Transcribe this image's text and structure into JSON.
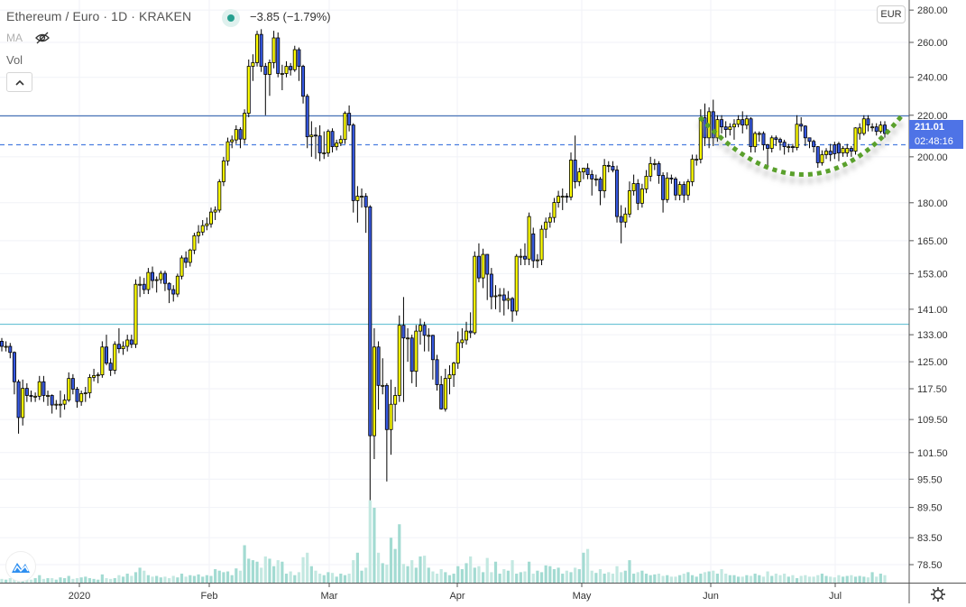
{
  "header": {
    "symbol_title": "Ethereum / Euro · 1D · KRAKEN",
    "change": "−3.85 (−1.79%)",
    "market_status_color": "#26a08f",
    "ma_label": "MA",
    "vol_label": "Vol",
    "collapse_icon": "chevron-up-icon",
    "hide_icon": "eye-slash-icon"
  },
  "axis": {
    "currency": "EUR",
    "current_price": "211.01",
    "countdown": "02:48:16",
    "settings_icon": "gear-icon"
  },
  "chart_data": {
    "type": "candlestick",
    "scale": "log",
    "grid": true,
    "colors": {
      "up": "#ffff00",
      "down": "#3658e0",
      "wick": "#000000",
      "volume": "#a9ddd4",
      "arc": "#5aa02c"
    },
    "y_ticks": [
      "280.00",
      "260.00",
      "240.00",
      "220.00",
      "200.00",
      "180.00",
      "165.00",
      "153.00",
      "141.00",
      "133.00",
      "125.00",
      "117.50",
      "109.50",
      "101.50",
      "95.50",
      "89.50",
      "83.50",
      "78.50"
    ],
    "x_ticks": [
      "2020",
      "Feb",
      "Mar",
      "Apr",
      "May",
      "Jun",
      "Jul"
    ],
    "horizontal_lines": [
      {
        "price": 220,
        "style": "solid",
        "color": "#4a74b8"
      },
      {
        "price": 206,
        "style": "dashed",
        "color": "#4a7ee0"
      },
      {
        "price": 136.4,
        "style": "solid",
        "color": "#72c6d8"
      }
    ],
    "annotation": {
      "type": "rounded-bottom arc",
      "style": "dotted",
      "color": "#5aa02c"
    },
    "candles": [
      [
        131,
        132,
        128,
        129.5
      ],
      [
        129.5,
        131,
        128,
        129.5
      ],
      [
        129.5,
        130.5,
        126,
        127.7
      ],
      [
        127.7,
        128,
        116,
        119.4
      ],
      [
        119.4,
        120,
        106,
        110
      ],
      [
        110,
        120,
        108,
        117.6
      ],
      [
        117.6,
        119,
        114,
        115.7
      ],
      [
        115.7,
        117,
        114,
        115.5
      ],
      [
        115.5,
        116.5,
        114,
        115.5
      ],
      [
        115.5,
        121,
        114.5,
        119.4
      ],
      [
        119.4,
        121,
        114,
        115.7
      ],
      [
        115.7,
        117,
        113,
        115.7
      ],
      [
        115.7,
        116,
        111,
        113.2
      ],
      [
        113.2,
        114.5,
        112,
        113.4
      ],
      [
        113.4,
        117,
        110,
        113.4
      ],
      [
        113.4,
        116,
        112,
        114.5
      ],
      [
        114.5,
        122,
        114,
        120.3
      ],
      [
        120.3,
        121.5,
        116,
        117.4
      ],
      [
        117.4,
        118,
        112.5,
        114.1
      ],
      [
        114.1,
        117,
        113,
        116.2
      ],
      [
        116.2,
        118,
        114,
        116.4
      ],
      [
        116.4,
        121.5,
        115,
        120.6
      ],
      [
        120.6,
        123,
        119.5,
        121.1
      ],
      [
        121.1,
        122,
        119,
        121.3
      ],
      [
        121.3,
        131,
        120.5,
        129.3
      ],
      [
        129.3,
        133,
        124,
        124.6
      ],
      [
        124.6,
        126,
        121,
        122.6
      ],
      [
        122.6,
        131,
        121.5,
        130.1
      ],
      [
        130.1,
        135,
        127.5,
        128.8
      ],
      [
        128.8,
        131,
        127,
        129.5
      ],
      [
        129.5,
        133,
        128,
        131.4
      ],
      [
        131.4,
        133,
        129,
        130.1
      ],
      [
        130.1,
        151,
        129,
        149.3
      ],
      [
        149.3,
        152,
        145,
        149.3
      ],
      [
        149.3,
        151.5,
        146,
        147.5
      ],
      [
        147.5,
        155,
        146,
        153.4
      ],
      [
        153.4,
        155.5,
        148,
        150.6
      ],
      [
        150.6,
        152,
        146.5,
        150.9
      ],
      [
        150.9,
        154,
        149.5,
        153.1
      ],
      [
        153.1,
        154,
        147,
        149.6
      ],
      [
        149.6,
        150,
        143,
        147.5
      ],
      [
        147.5,
        149,
        143.5,
        146
      ],
      [
        146,
        153,
        145,
        152.1
      ],
      [
        152.1,
        159.5,
        151,
        158.6
      ],
      [
        158.6,
        161,
        155,
        157
      ],
      [
        157,
        162,
        155.5,
        161.5
      ],
      [
        161.5,
        168,
        160,
        166.9
      ],
      [
        166.9,
        171,
        164,
        168.3
      ],
      [
        168.3,
        173,
        167,
        170.8
      ],
      [
        170.8,
        174,
        169,
        171.5
      ],
      [
        171.5,
        178,
        170,
        176.2
      ],
      [
        176.2,
        178.5,
        173,
        177
      ],
      [
        177,
        190,
        176,
        188.9
      ],
      [
        188.9,
        200,
        187,
        198.1
      ],
      [
        198.1,
        209,
        196,
        207
      ],
      [
        207,
        210,
        204,
        207.9
      ],
      [
        207.9,
        215,
        206,
        212.9
      ],
      [
        212.9,
        214,
        204,
        208.3
      ],
      [
        208.3,
        223,
        206,
        221
      ],
      [
        221,
        250,
        219,
        246.1
      ],
      [
        246.1,
        253,
        238,
        248.2
      ],
      [
        248.2,
        267,
        246,
        264.8
      ],
      [
        264.8,
        268,
        243,
        246.1
      ],
      [
        246.1,
        248,
        220,
        241.6
      ],
      [
        241.6,
        250,
        230,
        248.2
      ],
      [
        248.2,
        267,
        245,
        262.7
      ],
      [
        262.7,
        266,
        240,
        242.1
      ],
      [
        242.1,
        247,
        233,
        242.1
      ],
      [
        242.1,
        249,
        240,
        246.1
      ],
      [
        246.1,
        248,
        241,
        244.2
      ],
      [
        244.2,
        258,
        243,
        255.7
      ],
      [
        255.7,
        257,
        238,
        246.1
      ],
      [
        246.1,
        247,
        226,
        229.8
      ],
      [
        229.8,
        231,
        204,
        209.4
      ],
      [
        209.4,
        217,
        200,
        210.2
      ],
      [
        210.2,
        214,
        199,
        209.8
      ],
      [
        209.8,
        215,
        198,
        201.8
      ],
      [
        201.8,
        212,
        199,
        201.8
      ],
      [
        201.8,
        213,
        200,
        212
      ],
      [
        212,
        213.5,
        202,
        204.7
      ],
      [
        204.7,
        208,
        203,
        206.4
      ],
      [
        206.4,
        210,
        205,
        208.1
      ],
      [
        208.1,
        222,
        206,
        221
      ],
      [
        221,
        225,
        212,
        215.1
      ],
      [
        215.1,
        216,
        176,
        180.9
      ],
      [
        180.9,
        187,
        172,
        182.7
      ],
      [
        182.7,
        186,
        178,
        182.7
      ],
      [
        182.7,
        184,
        168,
        178.3
      ],
      [
        178.3,
        179,
        91,
        105.5
      ],
      [
        105.5,
        135,
        100,
        129.3
      ],
      [
        129.3,
        131,
        112,
        118.4
      ],
      [
        118.4,
        126,
        116,
        118.4
      ],
      [
        118.4,
        119,
        95,
        107
      ],
      [
        107,
        120,
        101,
        113.4
      ],
      [
        113.4,
        118,
        109,
        115.7
      ],
      [
        115.7,
        139,
        114,
        135.9
      ],
      [
        135.9,
        145,
        114,
        132
      ],
      [
        132,
        135,
        125,
        132
      ],
      [
        132,
        133,
        119,
        122.3
      ],
      [
        122.3,
        136,
        118,
        134.1
      ],
      [
        134.1,
        138,
        130,
        135.9
      ],
      [
        135.9,
        137,
        128,
        132.8
      ],
      [
        132.8,
        135,
        128,
        132.8
      ],
      [
        132.8,
        133,
        120,
        125.6
      ],
      [
        125.6,
        127,
        117,
        118.6
      ],
      [
        118.6,
        121,
        112,
        112.2
      ],
      [
        112.2,
        123,
        111.5,
        120.3
      ],
      [
        120.3,
        124,
        116,
        121.3
      ],
      [
        121.3,
        125,
        118,
        124.6
      ],
      [
        124.6,
        134,
        123,
        130.6
      ],
      [
        130.6,
        135,
        129,
        131.4
      ],
      [
        131.4,
        137,
        130,
        134.1
      ],
      [
        134.1,
        140,
        132,
        133.6
      ],
      [
        133.6,
        161,
        133,
        159.2
      ],
      [
        159.2,
        164,
        150,
        151.5
      ],
      [
        151.5,
        162,
        148,
        159.9
      ],
      [
        159.9,
        160,
        144,
        152.8
      ],
      [
        152.8,
        155,
        141,
        145.1
      ],
      [
        145.1,
        149,
        141,
        145.4
      ],
      [
        145.4,
        148,
        140,
        145.7
      ],
      [
        145.7,
        148,
        139,
        143.9
      ],
      [
        143.9,
        147,
        141,
        144.5
      ],
      [
        144.5,
        145,
        137,
        140.4
      ],
      [
        140.4,
        160,
        139,
        159.2
      ],
      [
        159.2,
        162,
        156,
        159.2
      ],
      [
        159.2,
        164,
        156,
        158.2
      ],
      [
        158.2,
        176,
        156,
        174.4
      ],
      [
        167.6,
        170,
        155,
        157.6
      ],
      [
        157.6,
        160,
        155,
        157.9
      ],
      [
        157.9,
        171,
        156,
        169.4
      ],
      [
        169.4,
        174,
        166,
        172.2
      ],
      [
        172.2,
        176,
        170,
        174
      ],
      [
        174,
        182,
        172,
        180.1
      ],
      [
        180.1,
        185,
        178,
        182.7
      ],
      [
        182.7,
        186,
        177,
        182.7
      ],
      [
        182.7,
        184,
        180,
        182.4
      ],
      [
        182.4,
        202,
        181,
        198.5
      ],
      [
        198.5,
        210,
        186,
        188.9
      ],
      [
        188.9,
        195,
        187,
        193.2
      ],
      [
        193.2,
        195,
        190,
        194.8
      ],
      [
        194.8,
        197,
        190,
        192
      ],
      [
        192,
        194,
        183,
        190.1
      ],
      [
        190.1,
        192,
        187,
        190.1
      ],
      [
        190.1,
        191,
        179,
        185
      ],
      [
        185,
        199,
        182,
        196.1
      ],
      [
        196.1,
        198,
        193,
        195.7
      ],
      [
        195.7,
        198,
        193,
        194
      ],
      [
        194,
        196,
        172,
        174.4
      ],
      [
        174.4,
        179,
        164,
        172.2
      ],
      [
        172.2,
        178,
        170,
        175.4
      ],
      [
        175.4,
        189,
        174,
        185
      ],
      [
        185,
        192,
        183,
        188.1
      ],
      [
        188.1,
        190,
        177,
        179.8
      ],
      [
        179.8,
        188,
        178,
        185.8
      ],
      [
        185.8,
        194,
        184,
        191.3
      ],
      [
        191.3,
        200,
        189,
        196.9
      ],
      [
        196.9,
        199,
        194,
        196.9
      ],
      [
        196.9,
        198,
        188,
        191.6
      ],
      [
        191.6,
        193,
        176,
        181.3
      ],
      [
        181.3,
        193,
        180,
        190.5
      ],
      [
        190.5,
        192,
        188,
        190.1
      ],
      [
        190.1,
        191,
        181,
        183.2
      ],
      [
        183.2,
        189,
        181,
        187.7
      ],
      [
        187.7,
        189,
        180,
        183.2
      ],
      [
        183.2,
        190,
        181,
        188.9
      ],
      [
        188.9,
        201,
        187,
        198.9
      ],
      [
        198.9,
        201,
        196,
        198.9
      ],
      [
        198.9,
        223,
        197,
        218.7
      ],
      [
        218.7,
        226,
        205,
        208.9
      ],
      [
        208.9,
        224,
        204,
        221.8
      ],
      [
        221.8,
        228,
        205,
        208.9
      ],
      [
        208.9,
        220,
        207,
        217.8
      ],
      [
        217.8,
        220,
        211,
        214.2
      ],
      [
        214.2,
        217,
        209,
        212.9
      ],
      [
        212.9,
        216,
        210,
        214.2
      ],
      [
        214.2,
        218,
        208,
        215.5
      ],
      [
        215.5,
        220,
        214,
        217.8
      ],
      [
        217.8,
        222,
        211,
        215.1
      ],
      [
        215.1,
        220,
        213,
        218.2
      ],
      [
        218.2,
        219,
        202,
        204.7
      ],
      [
        204.7,
        212,
        202,
        211
      ],
      [
        211,
        212,
        207,
        211
      ],
      [
        211,
        212,
        203,
        205.6
      ],
      [
        205.6,
        206,
        196,
        203.9
      ],
      [
        203.9,
        210,
        202,
        208.9
      ],
      [
        208.9,
        210,
        205,
        208.1
      ],
      [
        208.1,
        209,
        203,
        206.8
      ],
      [
        206.8,
        208,
        201,
        204.7
      ],
      [
        204.7,
        206,
        202,
        204.7
      ],
      [
        204.7,
        206,
        202,
        204.3
      ],
      [
        204.3,
        220,
        203,
        215.5
      ],
      [
        215.5,
        219,
        212,
        214.6
      ],
      [
        214.6,
        215,
        205,
        208.9
      ],
      [
        208.9,
        209,
        204,
        207.2
      ],
      [
        207.2,
        208,
        202,
        204.7
      ],
      [
        204.7,
        205,
        195,
        197.3
      ],
      [
        197.3,
        203,
        196,
        201
      ],
      [
        201,
        204,
        199,
        202.6
      ],
      [
        202.6,
        206,
        198,
        201
      ],
      [
        205.6,
        207,
        199,
        201.4
      ],
      [
        206,
        207,
        198,
        201.8
      ],
      [
        201.8,
        205,
        200,
        203.9
      ],
      [
        201.8,
        206,
        200,
        203.9
      ],
      [
        203.9,
        205,
        200,
        202.6
      ],
      [
        202.6,
        214,
        201,
        213.7
      ],
      [
        211,
        216,
        208,
        213.7
      ],
      [
        211,
        220,
        210,
        218.2
      ],
      [
        218.2,
        220,
        212,
        215.1
      ],
      [
        214,
        216,
        212,
        214.2
      ],
      [
        214.2,
        216,
        210,
        212
      ],
      [
        212,
        217,
        211,
        215.1
      ],
      [
        215.1,
        217,
        209,
        211
      ]
    ],
    "volume": [
      5,
      4,
      6,
      8,
      9,
      10,
      5,
      4,
      6,
      10,
      5,
      6,
      6,
      4,
      7,
      6,
      9,
      5,
      6,
      7,
      8,
      6,
      5,
      4,
      11,
      6,
      5,
      6,
      10,
      8,
      12,
      9,
      14,
      20,
      16,
      10,
      8,
      9,
      7,
      8,
      6,
      9,
      7,
      12,
      8,
      10,
      9,
      11,
      8,
      10,
      9,
      18,
      16,
      14,
      15,
      10,
      19,
      16,
      50,
      32,
      30,
      28,
      20,
      35,
      32,
      22,
      30,
      28,
      12,
      15,
      10,
      14,
      34,
      40,
      22,
      16,
      12,
      10,
      14,
      13,
      8,
      12,
      10,
      12,
      30,
      40,
      16,
      20,
      110,
      100,
      40,
      26,
      24,
      60,
      45,
      78,
      25,
      22,
      30,
      20,
      35,
      36,
      20,
      15,
      12,
      18,
      14,
      10,
      12,
      22,
      18,
      26,
      35,
      20,
      22,
      14,
      33,
      14,
      28,
      12,
      18,
      16,
      30,
      12,
      14,
      15,
      28,
      12,
      16,
      14,
      23,
      22,
      18,
      20,
      12,
      16,
      14,
      20,
      18,
      40,
      45,
      16,
      13,
      18,
      12,
      14,
      12,
      22,
      14,
      16,
      30,
      12,
      14,
      16,
      12,
      10,
      11,
      12,
      9,
      10,
      8,
      8,
      10,
      12,
      14,
      10,
      8,
      12,
      14,
      15,
      16,
      12,
      18,
      12,
      10,
      10,
      8,
      8,
      10,
      9,
      12,
      10,
      8,
      15,
      9,
      12,
      10,
      12,
      8,
      10,
      6,
      9,
      10,
      8,
      8,
      10,
      12,
      9,
      8,
      7,
      10,
      8,
      9,
      10,
      8,
      9,
      8,
      7,
      14,
      8,
      12,
      10,
      9,
      10
    ]
  }
}
